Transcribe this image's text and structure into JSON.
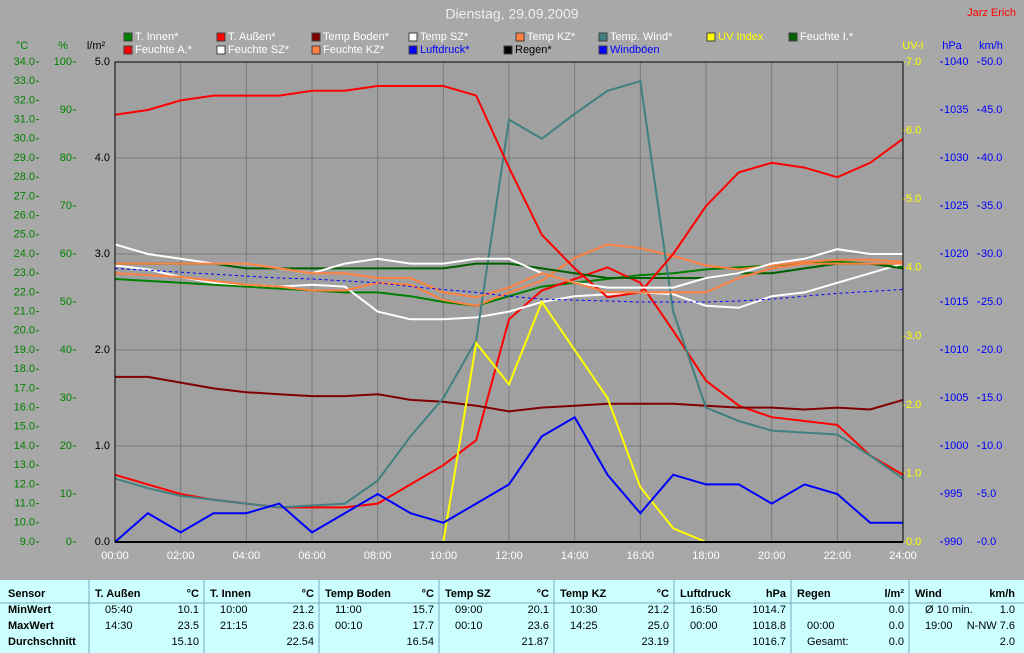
{
  "chart_data": {
    "type": "line",
    "title": "Dienstag, 29.09.2009",
    "credit": "Jarz Erich",
    "grid": true,
    "x": [
      0,
      1,
      2,
      3,
      4,
      5,
      6,
      7,
      8,
      9,
      10,
      11,
      12,
      13,
      14,
      15,
      16,
      17,
      18,
      19,
      20,
      21,
      22,
      23,
      24
    ],
    "xlim": [
      0,
      24
    ],
    "xticks": [
      {
        "value": 0,
        "label": "00:00"
      },
      {
        "value": 2,
        "label": "02:00"
      },
      {
        "value": 4,
        "label": "04:00"
      },
      {
        "value": 6,
        "label": "06:00"
      },
      {
        "value": 8,
        "label": "08:00"
      },
      {
        "value": 10,
        "label": "10:00"
      },
      {
        "value": 12,
        "label": "12:00"
      },
      {
        "value": 14,
        "label": "14:00"
      },
      {
        "value": 16,
        "label": "16:00"
      },
      {
        "value": 18,
        "label": "18:00"
      },
      {
        "value": 20,
        "label": "20:00"
      },
      {
        "value": 22,
        "label": "22:00"
      },
      {
        "value": 24,
        "label": "24:00"
      }
    ],
    "axes": [
      {
        "label": "°C",
        "color": "#008000",
        "lim": [
          9,
          34
        ],
        "ticks": [
          {
            "value": 9,
            "label": "9.0"
          },
          {
            "value": 10,
            "label": "10.0"
          },
          {
            "value": 11,
            "label": "11.0"
          },
          {
            "value": 12,
            "label": "12.0"
          },
          {
            "value": 13,
            "label": "13.0"
          },
          {
            "value": 14,
            "label": "14.0"
          },
          {
            "value": 15,
            "label": "15.0"
          },
          {
            "value": 16,
            "label": "16.0"
          },
          {
            "value": 17,
            "label": "17.0"
          },
          {
            "value": 18,
            "label": "18.0"
          },
          {
            "value": 19,
            "label": "19.0"
          },
          {
            "value": 20,
            "label": "20.0"
          },
          {
            "value": 21,
            "label": "21.0"
          },
          {
            "value": 22,
            "label": "22.0"
          },
          {
            "value": 23,
            "label": "23.0"
          },
          {
            "value": 24,
            "label": "24.0"
          },
          {
            "value": 25,
            "label": "25.0"
          },
          {
            "value": 26,
            "label": "26.0"
          },
          {
            "value": 27,
            "label": "27.0"
          },
          {
            "value": 28,
            "label": "28.0"
          },
          {
            "value": 29,
            "label": "29.0"
          },
          {
            "value": 30,
            "label": "30.0"
          },
          {
            "value": 31,
            "label": "31.0"
          },
          {
            "value": 32,
            "label": "32.0"
          },
          {
            "value": 33,
            "label": "33.0"
          },
          {
            "value": 34,
            "label": "34.0"
          }
        ]
      },
      {
        "label": "%",
        "color": "#008000",
        "lim": [
          0,
          100
        ],
        "ticks": [
          0,
          10,
          20,
          30,
          40,
          50,
          60,
          70,
          80,
          90,
          100
        ]
      },
      {
        "label": "l/m²",
        "color": "#000000",
        "lim": [
          0,
          5
        ],
        "grid": true,
        "ticks": [
          {
            "value": 0,
            "label": "0.0"
          },
          {
            "value": 1,
            "label": "1.0"
          },
          {
            "value": 2,
            "label": "2.0"
          },
          {
            "value": 3,
            "label": "3.0"
          },
          {
            "value": 4,
            "label": "4.0"
          },
          {
            "value": 5,
            "label": "5.0"
          }
        ]
      },
      {
        "label": "UV-I",
        "color": "#ffff00",
        "lim": [
          0,
          7
        ],
        "ticks": [
          {
            "value": 0,
            "label": "0.0"
          },
          {
            "value": 1,
            "label": "1.0"
          },
          {
            "value": 2,
            "label": "2.0"
          },
          {
            "value": 3,
            "label": "3.0"
          },
          {
            "value": 4,
            "label": "4.0"
          },
          {
            "value": 5,
            "label": "5.0"
          },
          {
            "value": 6,
            "label": "6.0"
          },
          {
            "value": 7,
            "label": "7.0"
          }
        ]
      },
      {
        "label": "hPa",
        "color": "#0000ff",
        "lim": [
          990,
          1040
        ],
        "ticks": [
          990,
          995,
          1000,
          1005,
          1010,
          1015,
          1020,
          1025,
          1030,
          1035,
          1040
        ]
      },
      {
        "label": "km/h",
        "color": "#0000ff",
        "lim": [
          0,
          50
        ],
        "ticks": [
          {
            "value": 0,
            "label": "0.0"
          },
          {
            "value": 5,
            "label": "5.0"
          },
          {
            "value": 10,
            "label": "10.0"
          },
          {
            "value": 15,
            "label": "15.0"
          },
          {
            "value": 20,
            "label": "20.0"
          },
          {
            "value": 25,
            "label": "25.0"
          },
          {
            "value": 30,
            "label": "30.0"
          },
          {
            "value": 35,
            "label": "35.0"
          },
          {
            "value": 40,
            "label": "40.0"
          },
          {
            "value": 45,
            "label": "45.0"
          },
          {
            "value": 50,
            "label": "50.0"
          }
        ]
      }
    ],
    "series": [
      {
        "name": "T. Innen*",
        "color": "#008000",
        "axis": 0,
        "values": [
          22.7,
          22.6,
          22.5,
          22.4,
          22.3,
          22.2,
          22.1,
          22.0,
          22.0,
          21.8,
          21.5,
          21.3,
          21.8,
          22.3,
          22.5,
          22.7,
          22.9,
          23.0,
          23.2,
          23.3,
          23.4,
          23.5,
          23.6,
          23.5,
          23.3
        ]
      },
      {
        "name": "T. Außen*",
        "color": "#ff0000",
        "axis": 0,
        "values": [
          12.5,
          12.0,
          11.5,
          11.2,
          11.0,
          10.8,
          10.8,
          10.8,
          11.0,
          12.0,
          13.0,
          14.3,
          20.6,
          22.1,
          22.7,
          23.3,
          22.5,
          20.0,
          17.4,
          16.1,
          15.5,
          15.3,
          15.1,
          13.5,
          12.5
        ]
      },
      {
        "name": "Temp Boden*",
        "color": "#800000",
        "axis": 0,
        "values": [
          17.6,
          17.6,
          17.3,
          17.0,
          16.8,
          16.7,
          16.6,
          16.6,
          16.7,
          16.4,
          16.3,
          16.1,
          15.8,
          16.0,
          16.1,
          16.2,
          16.2,
          16.2,
          16.1,
          16.0,
          16.0,
          15.9,
          16.0,
          15.9,
          16.4
        ]
      },
      {
        "name": "Temp SZ*",
        "color": "#ffffff",
        "axis": 0,
        "values": [
          23.4,
          23.2,
          22.8,
          22.5,
          22.4,
          22.3,
          22.4,
          22.3,
          21.0,
          20.6,
          20.6,
          20.7,
          21.0,
          21.5,
          21.8,
          21.9,
          22.0,
          21.9,
          21.3,
          21.2,
          21.8,
          22.0,
          22.5,
          23.0,
          23.5
        ]
      },
      {
        "name": "Temp KZ*",
        "color": "#ff8040",
        "axis": 0,
        "values": [
          23.0,
          22.9,
          22.8,
          22.6,
          22.4,
          22.3,
          22.1,
          22.1,
          22.5,
          22.4,
          21.6,
          21.3,
          22.0,
          22.6,
          23.8,
          24.5,
          24.3,
          23.9,
          23.4,
          23.2,
          23.4,
          23.6,
          23.7,
          23.7,
          23.6
        ]
      },
      {
        "name": "Temp. Wind*",
        "color": "#408080",
        "axis": 0,
        "values": [
          12.3,
          11.8,
          11.4,
          11.2,
          11.0,
          10.8,
          10.9,
          11.0,
          12.2,
          14.5,
          16.5,
          19.5,
          31.0,
          30.0,
          31.3,
          32.5,
          33.0,
          21.0,
          16.0,
          15.3,
          14.8,
          14.7,
          14.6,
          13.5,
          12.3
        ]
      },
      {
        "name": "UV Index",
        "color": "#ffff00",
        "label_color": "#ffff00",
        "axis": 3,
        "values": [
          0,
          0,
          0,
          0,
          0,
          0,
          0,
          0,
          0,
          0,
          0,
          2.9,
          2.3,
          3.5,
          2.8,
          2.1,
          0.8,
          0.2,
          0,
          0,
          0,
          0,
          0,
          0,
          0
        ]
      },
      {
        "name": "Feuchte I.*",
        "color": "#006000",
        "axis": 1,
        "values": [
          58,
          58,
          58,
          58,
          57,
          57,
          57,
          57,
          57,
          57,
          57,
          58,
          58,
          57,
          56,
          55,
          55,
          55,
          55,
          56,
          56,
          57,
          58,
          58,
          57
        ]
      },
      {
        "name": "Feuchte A.*",
        "color": "#ff0000",
        "axis": 1,
        "values": [
          89,
          90,
          92,
          93,
          93,
          93,
          94,
          94,
          95,
          95,
          95,
          93,
          78,
          64,
          57,
          51,
          52,
          60,
          70,
          77,
          79,
          78,
          76,
          79,
          84
        ]
      },
      {
        "name": "Feuchte SZ*",
        "color": "#ffffff",
        "axis": 1,
        "values": [
          62,
          60,
          59,
          58,
          58,
          57,
          56,
          58,
          59,
          58,
          58,
          59,
          59,
          56,
          54,
          53,
          53,
          53,
          55,
          56,
          58,
          59,
          61,
          60,
          60
        ]
      },
      {
        "name": "Feuchte KZ*",
        "color": "#ff8040",
        "axis": 1,
        "values": [
          58,
          58,
          58,
          58,
          58,
          57,
          56,
          56,
          55,
          55,
          52,
          51,
          53,
          56,
          54,
          52,
          52,
          52,
          52,
          55,
          57,
          58,
          58,
          58,
          58
        ]
      },
      {
        "name": "Luftdruck*",
        "color": "#0000ff",
        "label_color": "#0000ff",
        "dashed": true,
        "axis": 4,
        "values": [
          1018.5,
          1018.3,
          1018.1,
          1017.9,
          1017.7,
          1017.5,
          1017.4,
          1017.2,
          1017.0,
          1016.6,
          1016.3,
          1016.0,
          1015.6,
          1015.3,
          1015.2,
          1015.1,
          1015.0,
          1015.0,
          1015.0,
          1015.1,
          1015.3,
          1015.6,
          1015.9,
          1016.1,
          1016.3
        ]
      },
      {
        "name": "Regen*",
        "color": "#000000",
        "label_color": "#000000",
        "axis": 2,
        "values": [
          0,
          0,
          0,
          0,
          0,
          0,
          0,
          0,
          0,
          0,
          0,
          0,
          0,
          0,
          0,
          0,
          0,
          0,
          0,
          0,
          0,
          0,
          0,
          0,
          0
        ]
      },
      {
        "name": "Windböen",
        "color": "#0000ff",
        "label_color": "#0000ff",
        "axis": 5,
        "values": [
          0,
          3,
          1,
          3,
          3,
          4,
          1,
          3,
          5,
          3,
          2,
          4,
          6,
          11,
          13,
          7,
          3,
          7,
          6,
          6,
          4,
          6,
          5,
          2,
          2
        ]
      }
    ]
  },
  "table": {
    "row_labels": [
      "Sensor",
      "MinWert",
      "MaxWert",
      "Durchschnitt"
    ],
    "columns": [
      {
        "name": "T. Außen",
        "unit": "°C",
        "rows": [
          [
            "05:40",
            "10.1"
          ],
          [
            "14:30",
            "23.5"
          ],
          [
            null,
            "15.10"
          ]
        ]
      },
      {
        "name": "T. Innen",
        "unit": "°C",
        "rows": [
          [
            "10:00",
            "21.2"
          ],
          [
            "21:15",
            "23.6"
          ],
          [
            null,
            "22.54"
          ]
        ]
      },
      {
        "name": "Temp Boden",
        "unit": "°C",
        "rows": [
          [
            "11:00",
            "15.7"
          ],
          [
            "00:10",
            "17.7"
          ],
          [
            null,
            "16.54"
          ]
        ]
      },
      {
        "name": "Temp SZ",
        "unit": "°C",
        "rows": [
          [
            "09:00",
            "20.1"
          ],
          [
            "00:10",
            "23.6"
          ],
          [
            null,
            "21.87"
          ]
        ]
      },
      {
        "name": "Temp KZ",
        "unit": "°C",
        "rows": [
          [
            "10:30",
            "21.2"
          ],
          [
            "14:25",
            "25.0"
          ],
          [
            null,
            "23.19"
          ]
        ]
      },
      {
        "name": "Luftdruck",
        "unit": "hPa",
        "rows": [
          [
            "16:50",
            "1014.7"
          ],
          [
            "00:00",
            "1018.8"
          ],
          [
            null,
            "1016.7"
          ]
        ]
      },
      {
        "name": "Regen",
        "unit": "l/m²",
        "rows": [
          [
            null,
            "0.0"
          ],
          [
            "00:00",
            "0.0"
          ],
          [
            "Gesamt:",
            "0.0"
          ]
        ]
      },
      {
        "name": "Wind",
        "unit": "km/h",
        "rows": [
          [
            "Ø 10 min.",
            "1.0"
          ],
          [
            "19:00",
            "N-NW 7.6"
          ],
          [
            null,
            "2.0"
          ]
        ]
      }
    ]
  }
}
